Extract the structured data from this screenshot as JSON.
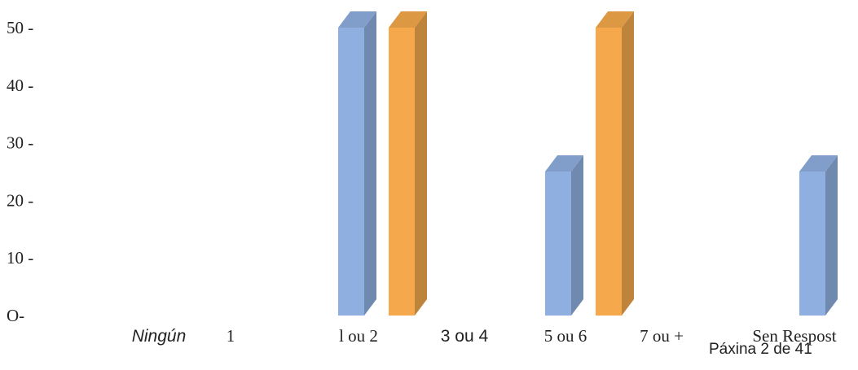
{
  "chart_data": {
    "type": "bar",
    "style": "3d-column",
    "categories": [
      "Ningún",
      "1",
      "l ou 2",
      "3 ou 4",
      "5 ou 6",
      "7 ou +",
      "Sen Respost"
    ],
    "series": [
      {
        "color": "#8FAFE0",
        "values": [
          null,
          null,
          50,
          null,
          25,
          null,
          25
        ]
      },
      {
        "color": "#F5A94C",
        "values": [
          null,
          null,
          50,
          null,
          50,
          null,
          null
        ]
      }
    ],
    "yticks": [
      "O-",
      "10 -",
      "20 -",
      "30 -",
      "40 -",
      "50 -"
    ],
    "ylim": [
      0,
      50
    ],
    "grid": false
  },
  "footer": {
    "page_label": "Páxina 2 de 41"
  }
}
